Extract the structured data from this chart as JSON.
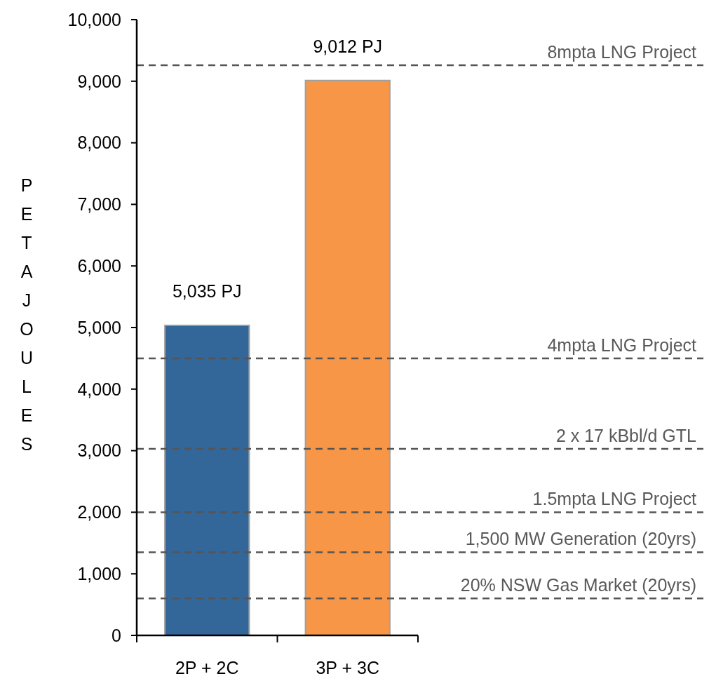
{
  "chart_data": {
    "type": "bar",
    "ylabel": "PETAJOULES",
    "categories": [
      "2P + 2C",
      "3P + 3C"
    ],
    "values": [
      5035,
      9012
    ],
    "colors": [
      "#336699",
      "#f79646"
    ],
    "value_labels": [
      "5,035 PJ",
      "9,012 PJ"
    ],
    "ylim": [
      0,
      10000
    ],
    "yticks": [
      {
        "value": 0,
        "label": "0"
      },
      {
        "value": 1000,
        "label": "1,000"
      },
      {
        "value": 2000,
        "label": "2,000"
      },
      {
        "value": 3000,
        "label": "3,000"
      },
      {
        "value": 4000,
        "label": "4,000"
      },
      {
        "value": 5000,
        "label": "5,000"
      },
      {
        "value": 6000,
        "label": "6,000"
      },
      {
        "value": 7000,
        "label": "7,000"
      },
      {
        "value": 8000,
        "label": "8,000"
      },
      {
        "value": 9000,
        "label": "9,000"
      },
      {
        "value": 10000,
        "label": "10,000"
      }
    ],
    "ref_lines": [
      {
        "axis": "y",
        "value": 9260,
        "label": "8mpta LNG Project",
        "color": "#555555",
        "line_style": "dashed"
      },
      {
        "axis": "y",
        "value": 4500,
        "label": "4mpta LNG Project",
        "color": "#555555",
        "line_style": "dashed"
      },
      {
        "axis": "y",
        "value": 3030,
        "label": "2 x 17 kBbl/d GTL",
        "color": "#555555",
        "line_style": "dashed"
      },
      {
        "axis": "y",
        "value": 2000,
        "label": "1.5mpta LNG Project",
        "color": "#555555",
        "line_style": "dashed"
      },
      {
        "axis": "y",
        "value": 1350,
        "label": "1,500 MW Generation (20yrs)",
        "color": "#555555",
        "line_style": "dashed"
      },
      {
        "axis": "y",
        "value": 600,
        "label": "20% NSW Gas Market (20yrs)",
        "color": "#555555",
        "line_style": "dashed"
      }
    ],
    "grid": false
  }
}
